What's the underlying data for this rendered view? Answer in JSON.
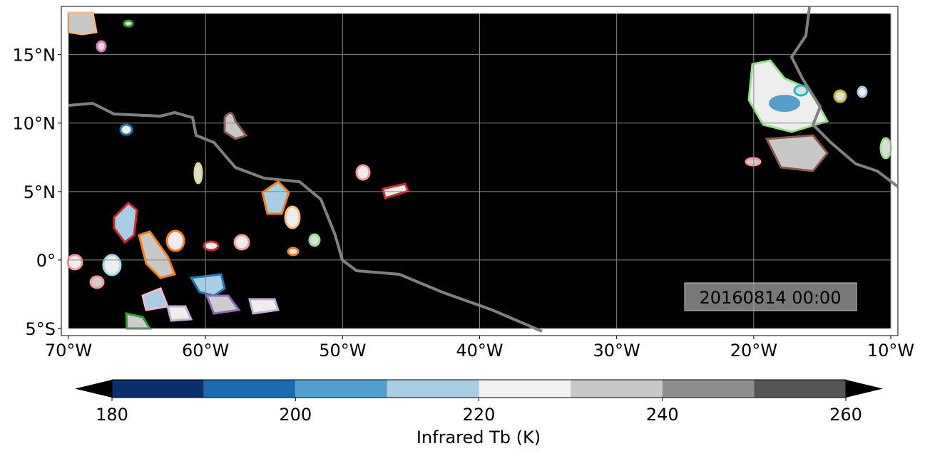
{
  "map": {
    "extent": {
      "lon": [
        -70,
        -10
      ],
      "lat": [
        -5,
        18
      ]
    },
    "background_color": "#000000",
    "gridlines": true,
    "coastline_color": "#808080",
    "lon_ticks": [
      "70°W",
      "60°W",
      "50°W",
      "40°W",
      "30°W",
      "20°W",
      "10°W"
    ],
    "lon_values": [
      -70,
      -60,
      -50,
      -40,
      -30,
      -20,
      -10
    ],
    "lat_ticks": [
      "15°N",
      "10°N",
      "5°N",
      "0°",
      "5°S"
    ],
    "lat_values": [
      15,
      10,
      5,
      0,
      -5
    ],
    "timestamp": "20160814 00:00"
  },
  "colorbar": {
    "label": "Infrared Tb (K)",
    "ticks": [
      "180",
      "200",
      "220",
      "240",
      "260"
    ],
    "tick_values": [
      180,
      200,
      220,
      240,
      260
    ],
    "bounds": [
      180,
      190,
      200,
      210,
      220,
      230,
      240,
      250,
      260
    ],
    "colors": [
      "#08306b",
      "#1c6aaf",
      "#539ecd",
      "#a6cee4",
      "#f2f2f2",
      "#c8c8c8",
      "#8e8e8e",
      "#555555"
    ],
    "extend_colors": {
      "under": "#000000",
      "over": "#000000"
    }
  }
}
